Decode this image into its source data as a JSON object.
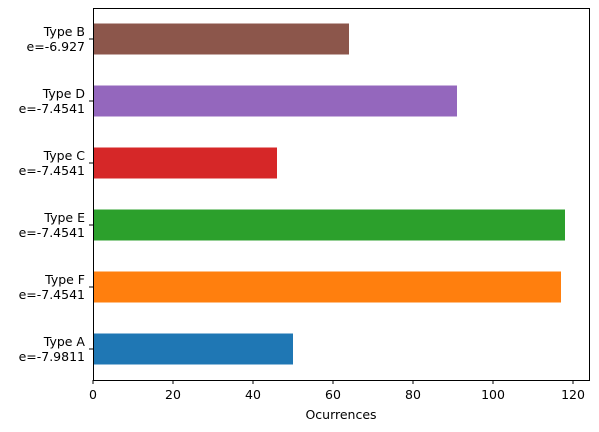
{
  "chart_data": {
    "type": "bar",
    "orientation": "horizontal",
    "title": "",
    "xlabel": "Ocurrences",
    "ylabel": "",
    "xlim": [
      0,
      124
    ],
    "xticks": [
      0,
      20,
      40,
      60,
      80,
      100,
      120
    ],
    "grid": false,
    "categories": [
      [
        "Type A",
        "e=-7.9811"
      ],
      [
        "Type F",
        "e=-7.4541"
      ],
      [
        "Type E",
        "e=-7.4541"
      ],
      [
        "Type C",
        "e=-7.4541"
      ],
      [
        "Type D",
        "e=-7.4541"
      ],
      [
        "Type B",
        "e=-6.927"
      ]
    ],
    "values": [
      50,
      117,
      118,
      46,
      91,
      64
    ],
    "colors": [
      "#1f77b4",
      "#ff7f0e",
      "#2ca02c",
      "#d62728",
      "#9467bd",
      "#8c564b"
    ]
  }
}
